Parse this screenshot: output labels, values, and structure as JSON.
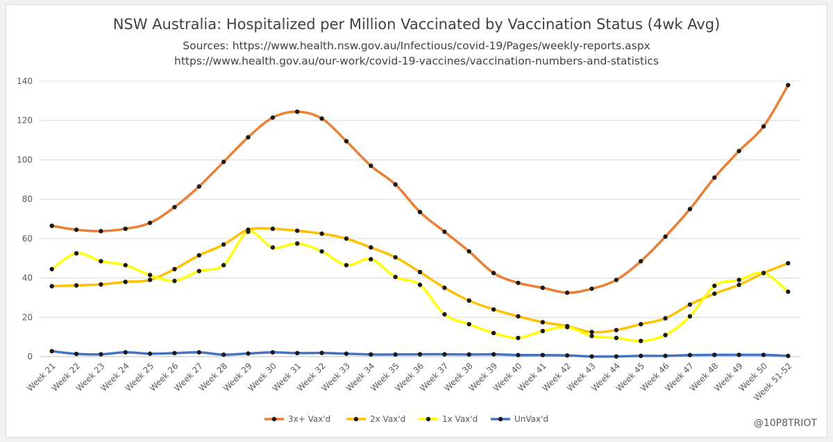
{
  "chart_data": {
    "type": "line",
    "title": "NSW Australia: Hospitalized per Million Vaccinated by Vaccination Status (4wk Avg)",
    "subtitle_lines": [
      "Sources: https://www.health.nsw.gov.au/Infectious/covid-19/Pages/weekly-reports.aspx",
      "https://www.health.gov.au/our-work/covid-19-vaccines/vaccination-numbers-and-statistics"
    ],
    "xlabel": "",
    "ylabel": "",
    "ylim": [
      0,
      140
    ],
    "yticks": [
      0,
      20,
      40,
      60,
      80,
      100,
      120,
      140
    ],
    "grid": true,
    "legend_position": "bottom",
    "categories": [
      "Week 21",
      "Week 22",
      "Week 23",
      "Week 24",
      "Week 25",
      "Week 26",
      "Week 27",
      "Week 28",
      "Week 29",
      "Week 30",
      "Week 31",
      "Week 32",
      "Week 33",
      "Week 34",
      "Week 35",
      "Week 36",
      "Week 37",
      "Week 38",
      "Week 39",
      "Week 40",
      "Week 41",
      "Week 42",
      "Week 43",
      "Week 44",
      "Week 45",
      "Week 46",
      "Week 47",
      "Week 48",
      "Week 49",
      "Week 50",
      "Week 51-52"
    ],
    "series": [
      {
        "name": "3x+ Vax'd",
        "color": "#ed7d31",
        "values": [
          66.5,
          64.5,
          63.8,
          65,
          68,
          76,
          86.5,
          99,
          111.5,
          121.5,
          124.5,
          121,
          109.5,
          97,
          87.5,
          73.5,
          63.5,
          53.5,
          42.5,
          37.5,
          35,
          32.5,
          34.5,
          39,
          48.5,
          61,
          75,
          91,
          104.5,
          117,
          138
        ]
      },
      {
        "name": "2x Vax'd",
        "color": "#ffc000",
        "values": [
          35.8,
          36.2,
          36.7,
          38,
          39,
          44.5,
          51.5,
          57,
          64.5,
          65,
          64,
          62.5,
          60,
          55.5,
          50.5,
          43,
          35,
          28.5,
          24,
          20.5,
          17.5,
          15.5,
          12.5,
          13.5,
          16.5,
          19.5,
          26.5,
          32,
          36.5,
          42.5,
          47.5
        ]
      },
      {
        "name": "1x Vax'd",
        "color": "#ffff00",
        "values": [
          44.5,
          52.5,
          48.5,
          46.5,
          41.5,
          38.5,
          43.5,
          46.5,
          63.5,
          55.5,
          57.5,
          53.5,
          46.5,
          49.5,
          40.5,
          36.5,
          21.5,
          16.5,
          12,
          9.5,
          13,
          15,
          10.5,
          9.5,
          8,
          11,
          20.5,
          36,
          39,
          42.5,
          33
        ]
      },
      {
        "name": "UnVax'd",
        "color": "#4472c4",
        "values": [
          2.8,
          1.4,
          1.2,
          2.2,
          1.5,
          1.8,
          2.2,
          1,
          1.6,
          2.2,
          1.8,
          1.9,
          1.5,
          1.1,
          1.1,
          1.2,
          1.2,
          1.1,
          1.2,
          0.8,
          0.8,
          0.6,
          0.1,
          0.1,
          0.4,
          0.4,
          0.8,
          0.9,
          0.9,
          0.9,
          0.4
        ]
      }
    ]
  },
  "watermark": "@10P8TRIOT"
}
